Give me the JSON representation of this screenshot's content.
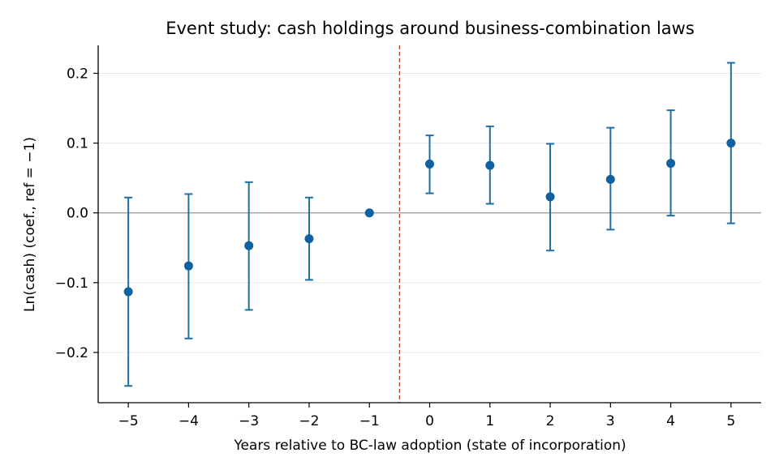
{
  "chart_data": {
    "type": "scatter",
    "title": "Event study: cash holdings around business-combination laws",
    "xlabel": "Years relative to BC-law adoption (state of incorporation)",
    "ylabel": "Ln(cash) (coef., ref = −1)",
    "x": [
      -5,
      -4,
      -3,
      -2,
      -1,
      0,
      1,
      2,
      3,
      4,
      5
    ],
    "x_tick_labels": [
      "−5",
      "−4",
      "−3",
      "−2",
      "−1",
      "0",
      "1",
      "2",
      "3",
      "4",
      "5"
    ],
    "series": [
      {
        "values": [
          -0.113,
          -0.076,
          -0.047,
          -0.037,
          0.0,
          0.07,
          0.068,
          0.023,
          0.048,
          0.071,
          0.1
        ],
        "ci_lower": [
          -0.248,
          -0.18,
          -0.139,
          -0.096,
          0.0,
          0.028,
          0.013,
          -0.054,
          -0.024,
          -0.004,
          -0.015
        ],
        "ci_upper": [
          0.022,
          0.027,
          0.044,
          0.022,
          0.0,
          0.111,
          0.124,
          0.099,
          0.122,
          0.147,
          0.215
        ],
        "color": "#1f77b4"
      }
    ],
    "y_ticks": [
      -0.2,
      -0.1,
      0.0,
      0.1,
      0.2
    ],
    "y_tick_labels": [
      "−0.2",
      "−0.1",
      "0.0",
      "0.1",
      "0.2"
    ],
    "xlim": [
      -5.5,
      5.5
    ],
    "ylim": [
      -0.272,
      0.24
    ],
    "reference_lines": {
      "horizontal_y": 0.0,
      "vertical_x": -0.5
    },
    "grid": "horizontal",
    "colors": {
      "points": "#0f61a0",
      "errorbars": "#1f6fa3",
      "vertical_line": "#c0392b",
      "zero_line": "#999999",
      "grid": "#e8e8e8"
    }
  }
}
